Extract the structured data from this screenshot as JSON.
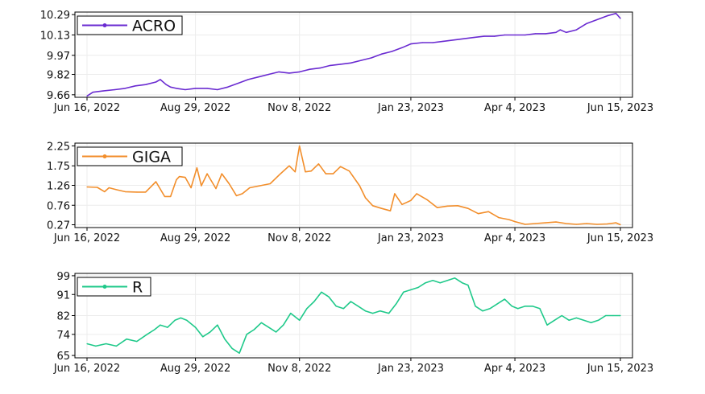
{
  "chart_data": [
    {
      "type": "line",
      "series": [
        {
          "name": "ACRO",
          "color": "#6a2bd1",
          "x": [
            "2022-06-16",
            "2022-06-20",
            "2022-06-27",
            "2022-07-05",
            "2022-07-12",
            "2022-07-19",
            "2022-07-26",
            "2022-08-02",
            "2022-08-05",
            "2022-08-09",
            "2022-08-12",
            "2022-08-16",
            "2022-08-22",
            "2022-08-29",
            "2022-09-06",
            "2022-09-13",
            "2022-09-20",
            "2022-09-27",
            "2022-10-04",
            "2022-10-11",
            "2022-10-18",
            "2022-10-25",
            "2022-11-01",
            "2022-11-08",
            "2022-11-15",
            "2022-11-22",
            "2022-11-29",
            "2022-12-06",
            "2022-12-13",
            "2022-12-20",
            "2022-12-27",
            "2023-01-03",
            "2023-01-10",
            "2023-01-17",
            "2023-01-23",
            "2023-01-31",
            "2023-02-07",
            "2023-02-14",
            "2023-02-21",
            "2023-02-28",
            "2023-03-07",
            "2023-03-14",
            "2023-03-21",
            "2023-03-28",
            "2023-04-04",
            "2023-04-11",
            "2023-04-18",
            "2023-04-25",
            "2023-05-02",
            "2023-05-05",
            "2023-05-09",
            "2023-05-16",
            "2023-05-23",
            "2023-05-30",
            "2023-06-06",
            "2023-06-12",
            "2023-06-15"
          ],
          "y": [
            9.65,
            9.68,
            9.69,
            9.7,
            9.71,
            9.73,
            9.74,
            9.76,
            9.78,
            9.74,
            9.72,
            9.71,
            9.7,
            9.71,
            9.71,
            9.7,
            9.72,
            9.75,
            9.78,
            9.8,
            9.82,
            9.84,
            9.83,
            9.84,
            9.86,
            9.87,
            9.89,
            9.9,
            9.91,
            9.93,
            9.95,
            9.98,
            10.0,
            10.03,
            10.06,
            10.07,
            10.07,
            10.08,
            10.09,
            10.1,
            10.11,
            10.12,
            10.12,
            10.13,
            10.13,
            10.13,
            10.14,
            10.14,
            10.15,
            10.17,
            10.15,
            10.17,
            10.22,
            10.25,
            10.28,
            10.3,
            10.26
          ]
        }
      ],
      "yticks": [
        "9.66",
        "9.82",
        "9.97",
        "10.13",
        "10.29"
      ],
      "ylim": [
        9.64,
        10.31
      ],
      "xticks": [
        "Jun 16, 2022",
        "Aug 29, 2022",
        "Nov 8, 2022",
        "Jan 23, 2023",
        "Apr 4, 2023",
        "Jun 15, 2023"
      ],
      "xtick_dates": [
        "2022-06-16",
        "2022-08-29",
        "2022-11-08",
        "2023-01-23",
        "2023-04-04",
        "2023-06-15"
      ],
      "grid": true,
      "legend": "top-left"
    },
    {
      "type": "line",
      "series": [
        {
          "name": "GIGA",
          "color": "#f28e2b",
          "x": [
            "2022-06-16",
            "2022-06-23",
            "2022-06-28",
            "2022-07-01",
            "2022-07-06",
            "2022-07-12",
            "2022-07-20",
            "2022-07-26",
            "2022-08-02",
            "2022-08-08",
            "2022-08-12",
            "2022-08-16",
            "2022-08-18",
            "2022-08-22",
            "2022-08-26",
            "2022-08-30",
            "2022-09-02",
            "2022-09-06",
            "2022-09-12",
            "2022-09-16",
            "2022-09-21",
            "2022-09-26",
            "2022-09-30",
            "2022-10-05",
            "2022-10-12",
            "2022-10-19",
            "2022-10-26",
            "2022-11-01",
            "2022-11-05",
            "2022-11-08",
            "2022-11-12",
            "2022-11-16",
            "2022-11-21",
            "2022-11-26",
            "2022-12-01",
            "2022-12-06",
            "2022-12-12",
            "2022-12-19",
            "2022-12-23",
            "2022-12-28",
            "2023-01-03",
            "2023-01-09",
            "2023-01-12",
            "2023-01-17",
            "2023-01-23",
            "2023-01-27",
            "2023-02-03",
            "2023-02-10",
            "2023-02-17",
            "2023-02-24",
            "2023-03-03",
            "2023-03-10",
            "2023-03-17",
            "2023-03-24",
            "2023-03-31",
            "2023-04-04",
            "2023-04-11",
            "2023-04-18",
            "2023-04-25",
            "2023-05-02",
            "2023-05-09",
            "2023-05-16",
            "2023-05-23",
            "2023-05-30",
            "2023-06-06",
            "2023-06-12",
            "2023-06-15"
          ],
          "y": [
            1.22,
            1.21,
            1.1,
            1.2,
            1.15,
            1.1,
            1.09,
            1.09,
            1.35,
            0.98,
            0.98,
            1.4,
            1.48,
            1.46,
            1.2,
            1.7,
            1.25,
            1.55,
            1.18,
            1.55,
            1.3,
            1.0,
            1.05,
            1.2,
            1.25,
            1.3,
            1.55,
            1.75,
            1.6,
            2.25,
            1.6,
            1.62,
            1.8,
            1.55,
            1.55,
            1.73,
            1.62,
            1.25,
            0.95,
            0.75,
            0.68,
            0.62,
            1.05,
            0.78,
            0.88,
            1.05,
            0.9,
            0.7,
            0.74,
            0.75,
            0.68,
            0.55,
            0.6,
            0.45,
            0.4,
            0.35,
            0.28,
            0.3,
            0.32,
            0.34,
            0.3,
            0.28,
            0.3,
            0.28,
            0.29,
            0.32,
            0.27
          ]
        }
      ],
      "yticks": [
        "0.27",
        "0.76",
        "1.26",
        "1.75",
        "2.25"
      ],
      "ylim": [
        0.2,
        2.32
      ],
      "xticks": [
        "Jun 16, 2022",
        "Aug 29, 2022",
        "Nov 8, 2022",
        "Jan 23, 2023",
        "Apr 4, 2023",
        "Jun 15, 2023"
      ],
      "xtick_dates": [
        "2022-06-16",
        "2022-08-29",
        "2022-11-08",
        "2023-01-23",
        "2023-04-04",
        "2023-06-15"
      ],
      "grid": true,
      "legend": "top-left"
    },
    {
      "type": "line",
      "series": [
        {
          "name": "R",
          "color": "#1fc98a",
          "x": [
            "2022-06-16",
            "2022-06-22",
            "2022-06-29",
            "2022-07-06",
            "2022-07-13",
            "2022-07-20",
            "2022-07-27",
            "2022-08-01",
            "2022-08-05",
            "2022-08-10",
            "2022-08-15",
            "2022-08-19",
            "2022-08-23",
            "2022-08-29",
            "2022-09-03",
            "2022-09-08",
            "2022-09-13",
            "2022-09-18",
            "2022-09-23",
            "2022-09-28",
            "2022-10-03",
            "2022-10-08",
            "2022-10-13",
            "2022-10-18",
            "2022-10-23",
            "2022-10-28",
            "2022-11-02",
            "2022-11-08",
            "2022-11-13",
            "2022-11-18",
            "2022-11-23",
            "2022-11-28",
            "2022-12-03",
            "2022-12-08",
            "2022-12-13",
            "2022-12-18",
            "2022-12-23",
            "2022-12-28",
            "2023-01-02",
            "2023-01-08",
            "2023-01-13",
            "2023-01-18",
            "2023-01-23",
            "2023-01-28",
            "2023-02-02",
            "2023-02-07",
            "2023-02-12",
            "2023-02-17",
            "2023-02-22",
            "2023-02-27",
            "2023-03-03",
            "2023-03-08",
            "2023-03-13",
            "2023-03-18",
            "2023-03-23",
            "2023-03-28",
            "2023-04-02",
            "2023-04-06",
            "2023-04-11",
            "2023-04-16",
            "2023-04-21",
            "2023-04-26",
            "2023-05-01",
            "2023-05-06",
            "2023-05-11",
            "2023-05-16",
            "2023-05-21",
            "2023-05-26",
            "2023-05-31",
            "2023-06-05",
            "2023-06-10",
            "2023-06-15"
          ],
          "y": [
            70,
            69,
            70,
            69,
            72,
            71,
            74,
            76,
            78,
            77,
            80,
            81,
            80,
            77,
            73,
            75,
            78,
            72,
            68,
            66,
            74,
            76,
            79,
            77,
            75,
            78,
            83,
            80,
            85,
            88,
            92,
            90,
            86,
            85,
            88,
            86,
            84,
            83,
            84,
            83,
            87,
            92,
            93,
            94,
            96,
            97,
            96,
            97,
            98,
            96,
            95,
            86,
            84,
            85,
            87,
            89,
            86,
            85,
            86,
            86,
            85,
            78,
            80,
            82,
            80,
            81,
            80,
            79,
            80,
            82,
            82,
            82
          ]
        }
      ],
      "yticks": [
        "65",
        "74",
        "82",
        "91",
        "99"
      ],
      "ylim": [
        64,
        100
      ],
      "xticks": [
        "Jun 16, 2022",
        "Aug 29, 2022",
        "Nov 8, 2022",
        "Jan 23, 2023",
        "Apr 4, 2023",
        "Jun 15, 2023"
      ],
      "xtick_dates": [
        "2022-06-16",
        "2022-08-29",
        "2022-11-08",
        "2023-01-23",
        "2023-04-04",
        "2023-06-15"
      ],
      "grid": true,
      "legend": "top-left"
    }
  ]
}
